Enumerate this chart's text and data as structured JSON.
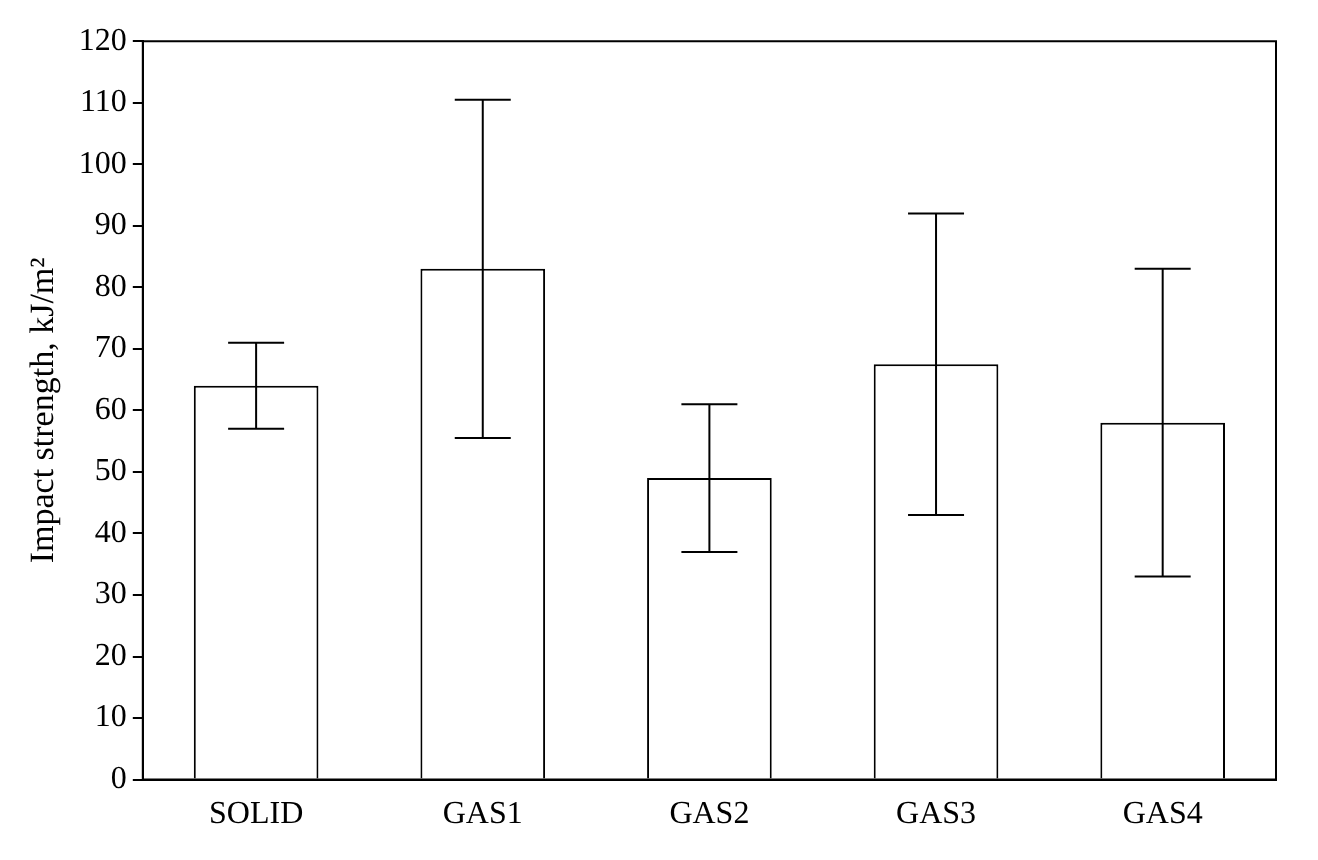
{
  "chart_data": {
    "type": "bar",
    "ylabel": "Impact strength, kJ/m²",
    "categories": [
      "SOLID",
      "GAS1",
      "GAS2",
      "GAS3",
      "GAS4"
    ],
    "values": [
      64,
      83,
      49,
      67.5,
      58
    ],
    "errors": [
      7,
      27.5,
      12,
      24.5,
      25
    ],
    "color": "#ffffff",
    "ylim": [
      0,
      120
    ],
    "yticks": [
      0,
      10,
      20,
      30,
      40,
      50,
      60,
      70,
      80,
      90,
      100,
      110,
      120
    ],
    "grid": false,
    "legend": false
  }
}
